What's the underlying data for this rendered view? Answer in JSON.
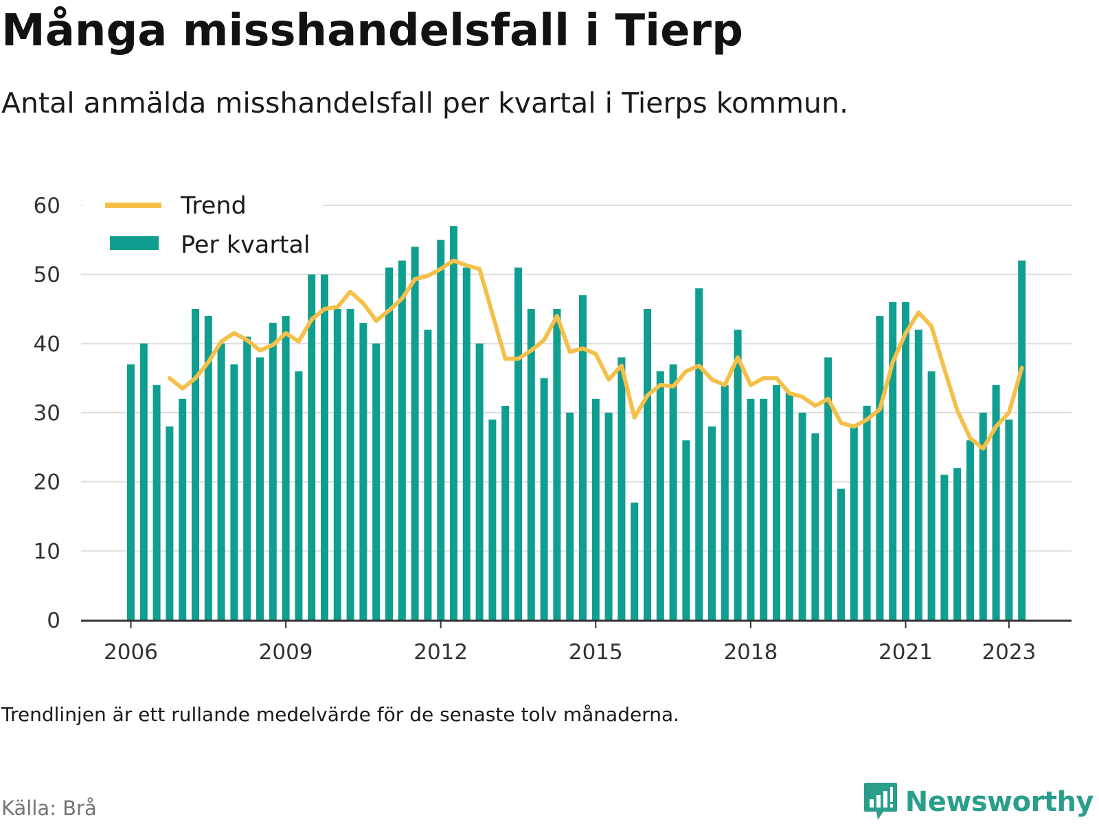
{
  "header": {
    "title": "Många misshandelsfall i Tierp",
    "subtitle": "Antal anmälda misshandelsfall per kvartal i Tierps kommun."
  },
  "footer": {
    "note": "Trendlinjen är ett rullande medelvärde för de senaste tolv månaderna.",
    "source": "Källa: Brå",
    "brand": "Newsworthy"
  },
  "colors": {
    "bars": "#0f9e8f",
    "trend": "#f5c04a",
    "grid": "#dddddd",
    "axis": "#333333",
    "brand": "#2a9e8b"
  },
  "chart_data": {
    "type": "bar",
    "title": "Många misshandelsfall i Tierp",
    "ylim": [
      0,
      60
    ],
    "yticks": [
      0,
      10,
      20,
      30,
      40,
      50,
      60
    ],
    "xticks": [
      "2006",
      "2009",
      "2012",
      "2015",
      "2018",
      "2021",
      "2023"
    ],
    "grid": true,
    "legend": {
      "placement": "top-left",
      "entries": [
        "Trend",
        "Per kvartal"
      ]
    },
    "categories": [
      "2006 Q1",
      "2006 Q2",
      "2006 Q3",
      "2006 Q4",
      "2007 Q1",
      "2007 Q2",
      "2007 Q3",
      "2007 Q4",
      "2008 Q1",
      "2008 Q2",
      "2008 Q3",
      "2008 Q4",
      "2009 Q1",
      "2009 Q2",
      "2009 Q3",
      "2009 Q4",
      "2010 Q1",
      "2010 Q2",
      "2010 Q3",
      "2010 Q4",
      "2011 Q1",
      "2011 Q2",
      "2011 Q3",
      "2011 Q4",
      "2012 Q1",
      "2012 Q2",
      "2012 Q3",
      "2012 Q4",
      "2013 Q1",
      "2013 Q2",
      "2013 Q3",
      "2013 Q4",
      "2014 Q1",
      "2014 Q2",
      "2014 Q3",
      "2014 Q4",
      "2015 Q1",
      "2015 Q2",
      "2015 Q3",
      "2015 Q4",
      "2016 Q1",
      "2016 Q2",
      "2016 Q3",
      "2016 Q4",
      "2017 Q1",
      "2017 Q2",
      "2017 Q3",
      "2017 Q4",
      "2018 Q1",
      "2018 Q2",
      "2018 Q3",
      "2018 Q4",
      "2019 Q1",
      "2019 Q2",
      "2019 Q3",
      "2019 Q4",
      "2020 Q1",
      "2020 Q2",
      "2020 Q3",
      "2020 Q4",
      "2021 Q1",
      "2021 Q2",
      "2021 Q3",
      "2021 Q4",
      "2022 Q1",
      "2022 Q2",
      "2022 Q3",
      "2022 Q4",
      "2023 Q1",
      "2023 Q2"
    ],
    "series": [
      {
        "name": "Per kvartal",
        "type": "bar",
        "values": [
          37,
          40,
          34,
          28,
          32,
          45,
          44,
          40,
          37,
          41,
          38,
          43,
          44,
          36,
          50,
          50,
          45,
          45,
          43,
          40,
          51,
          52,
          54,
          42,
          55,
          57,
          51,
          40,
          29,
          31,
          51,
          45,
          35,
          45,
          30,
          47,
          32,
          30,
          38,
          17,
          45,
          36,
          37,
          26,
          48,
          28,
          34,
          42,
          32,
          32,
          34,
          33,
          30,
          27,
          38,
          19,
          28,
          31,
          44,
          46,
          46,
          42,
          36,
          21,
          22,
          26,
          30,
          34,
          29,
          52
        ]
      },
      {
        "name": "Trend",
        "type": "line",
        "values": [
          null,
          null,
          null,
          35,
          33.5,
          35,
          37.3,
          40.3,
          41.5,
          40.5,
          39,
          39.8,
          41.5,
          40.3,
          43.5,
          45,
          45.3,
          47.5,
          45.8,
          43.3,
          44.8,
          46.5,
          49.3,
          49.8,
          50.8,
          52,
          51.3,
          50.8,
          44.3,
          37.8,
          37.8,
          39,
          40.5,
          44,
          38.8,
          39.3,
          38.5,
          34.8,
          36.8,
          29.3,
          32.5,
          34,
          33.8,
          36,
          36.8,
          34.8,
          34,
          38,
          34,
          35,
          35,
          32.8,
          32.3,
          31,
          32,
          28.5,
          28,
          29,
          30.5,
          37.3,
          41.5,
          44.5,
          42.5,
          36.3,
          30.3,
          26.3,
          24.8,
          28,
          30,
          36.5
        ]
      }
    ]
  }
}
